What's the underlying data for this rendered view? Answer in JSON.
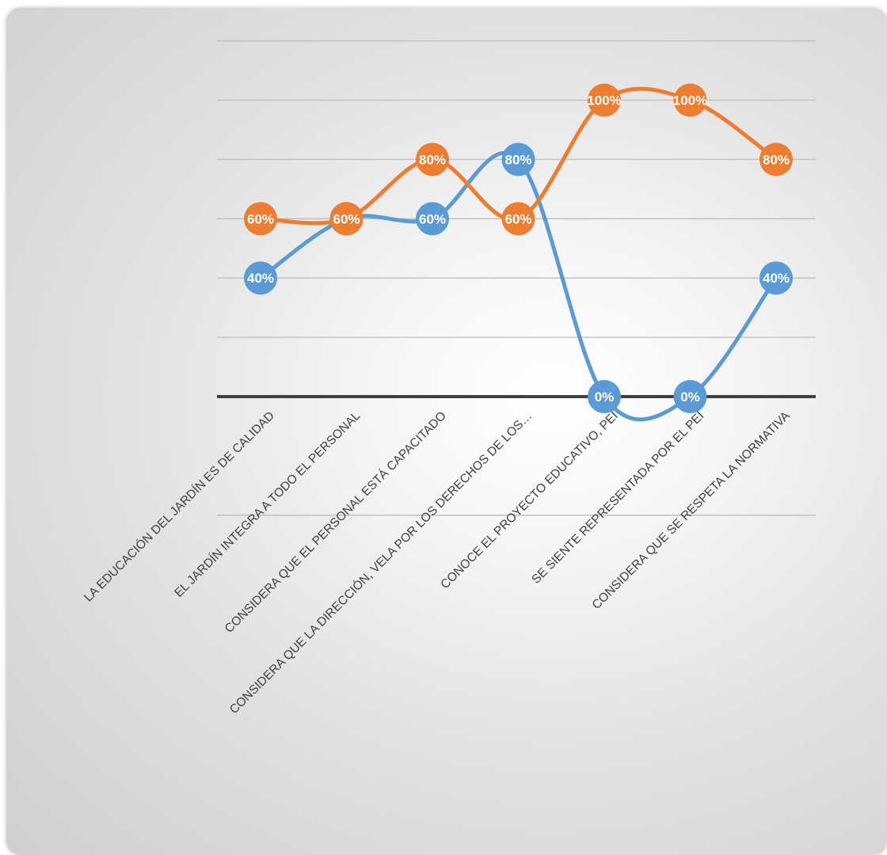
{
  "chart_data": {
    "type": "line",
    "smooth": true,
    "categories": [
      "LA EDUCACIÓN DEL JARDÍN ES DE CALIDAD",
      "EL JARDÍN INTEGRA A TODO EL PERSONAL",
      "CONSIDERA QUE EL PERSONAL ESTÁ CAPACITADO",
      "CONSIDERA QUE LA DIRECCIÓN, VELA POR LOS DERECHOS DE LOS…",
      "CONOCE EL PROYECTO EDUCATIVO, PEI",
      "SE SIENTE REPRESENTADA POR EL PEI",
      "CONSIDERA QUE SE RESPETA LA NORMATIVA"
    ],
    "series": [
      {
        "color": "#5b9bd5",
        "values": [
          40,
          60,
          60,
          80,
          0,
          0,
          40
        ],
        "labels": [
          "40%",
          "60%",
          "60%",
          "80%",
          "0%",
          "0%",
          "40%"
        ]
      },
      {
        "color": "#ed7d31",
        "values": [
          60,
          60,
          80,
          60,
          100,
          100,
          80
        ],
        "labels": [
          "60%",
          "60%",
          "80%",
          "60%",
          "100%",
          "100%",
          "80%"
        ]
      }
    ],
    "ylim": [
      -40,
      120
    ],
    "gridlines": [
      -40,
      20,
      40,
      60,
      80,
      100,
      120
    ],
    "zero_line": true,
    "data_labels": "inside circular markers",
    "grid": true,
    "legend": "none",
    "title": "",
    "xlabel": "",
    "ylabel": ""
  }
}
